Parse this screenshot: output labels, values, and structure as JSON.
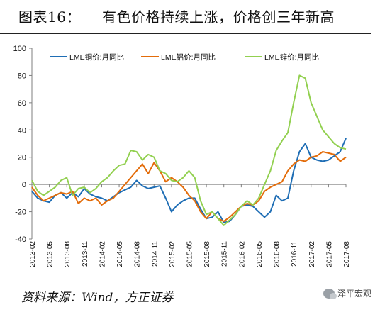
{
  "title": {
    "label": "图表16：",
    "text": "有色价格持续上涨，价格创三年新高"
  },
  "source": "资料来源：Wind，方正证券",
  "watermark": "泽平宏观",
  "chart_data": {
    "type": "line",
    "title": "",
    "xlabel": "",
    "ylabel": "",
    "ylim": [
      -40,
      100
    ],
    "yticks": [
      -40,
      -20,
      0,
      20,
      40,
      60,
      80,
      100
    ],
    "grid": false,
    "legend_position": "top",
    "x_tick_labels": [
      "2013-02",
      "2013-05",
      "2013-08",
      "2013-11",
      "2014-02",
      "2014-05",
      "2014-08",
      "2014-11",
      "2015-02",
      "2015-05",
      "2015-08",
      "2015-11",
      "2016-02",
      "2016-05",
      "2016-08",
      "2016-11",
      "2017-02",
      "2017-05",
      "2017-08"
    ],
    "x_start": "2013-02",
    "x_end": "2017-08",
    "series": [
      {
        "name": "LME铜价:月同比",
        "color": "#1f6eb5",
        "points": [
          [
            "2013-02",
            -5
          ],
          [
            "2013-03",
            -10
          ],
          [
            "2013-04",
            -12
          ],
          [
            "2013-05",
            -13
          ],
          [
            "2013-06",
            -8
          ],
          [
            "2013-07",
            -6
          ],
          [
            "2013-08",
            -10
          ],
          [
            "2013-09",
            -6
          ],
          [
            "2013-10",
            -9
          ],
          [
            "2013-11",
            -3
          ],
          [
            "2013-12",
            -7
          ],
          [
            "2014-01",
            -9
          ],
          [
            "2014-02",
            -10
          ],
          [
            "2014-03",
            -12
          ],
          [
            "2014-04",
            -9
          ],
          [
            "2014-05",
            -6
          ],
          [
            "2014-06",
            -4
          ],
          [
            "2014-07",
            -2
          ],
          [
            "2014-08",
            3
          ],
          [
            "2014-09",
            -1
          ],
          [
            "2014-10",
            -3
          ],
          [
            "2014-11",
            -2
          ],
          [
            "2014-12",
            -1
          ],
          [
            "2015-01",
            -10
          ],
          [
            "2015-02",
            -20
          ],
          [
            "2015-03",
            -15
          ],
          [
            "2015-04",
            -12
          ],
          [
            "2015-05",
            -10
          ],
          [
            "2015-06",
            -10
          ],
          [
            "2015-07",
            -18
          ],
          [
            "2015-08",
            -25
          ],
          [
            "2015-09",
            -24
          ],
          [
            "2015-10",
            -20
          ],
          [
            "2015-11",
            -28
          ],
          [
            "2015-12",
            -27
          ],
          [
            "2016-01",
            -22
          ],
          [
            "2016-02",
            -16
          ],
          [
            "2016-03",
            -15
          ],
          [
            "2016-04",
            -16
          ],
          [
            "2016-05",
            -20
          ],
          [
            "2016-06",
            -24
          ],
          [
            "2016-07",
            -20
          ],
          [
            "2016-08",
            -8
          ],
          [
            "2016-09",
            -12
          ],
          [
            "2016-10",
            -10
          ],
          [
            "2016-11",
            10
          ],
          [
            "2016-12",
            24
          ],
          [
            "2017-01",
            30
          ],
          [
            "2017-02",
            20
          ],
          [
            "2017-03",
            18
          ],
          [
            "2017-04",
            17
          ],
          [
            "2017-05",
            18
          ],
          [
            "2017-06",
            21
          ],
          [
            "2017-07",
            24
          ],
          [
            "2017-08",
            34
          ]
        ]
      },
      {
        "name": "LME铝价:月同比",
        "color": "#e36c0a",
        "points": [
          [
            "2013-02",
            -2
          ],
          [
            "2013-03",
            -8
          ],
          [
            "2013-04",
            -12
          ],
          [
            "2013-05",
            -10
          ],
          [
            "2013-06",
            -8
          ],
          [
            "2013-07",
            -6
          ],
          [
            "2013-08",
            -7
          ],
          [
            "2013-09",
            -5
          ],
          [
            "2013-10",
            -14
          ],
          [
            "2013-11",
            -10
          ],
          [
            "2013-12",
            -12
          ],
          [
            "2014-01",
            -10
          ],
          [
            "2014-02",
            -15
          ],
          [
            "2014-03",
            -12
          ],
          [
            "2014-04",
            -10
          ],
          [
            "2014-05",
            -5
          ],
          [
            "2014-06",
            0
          ],
          [
            "2014-07",
            5
          ],
          [
            "2014-08",
            10
          ],
          [
            "2014-09",
            15
          ],
          [
            "2014-10",
            8
          ],
          [
            "2014-11",
            16
          ],
          [
            "2014-12",
            10
          ],
          [
            "2015-01",
            2
          ],
          [
            "2015-02",
            5
          ],
          [
            "2015-03",
            2
          ],
          [
            "2015-04",
            -2
          ],
          [
            "2015-05",
            -8
          ],
          [
            "2015-06",
            -12
          ],
          [
            "2015-07",
            -20
          ],
          [
            "2015-08",
            -25
          ],
          [
            "2015-09",
            -20
          ],
          [
            "2015-10",
            -25
          ],
          [
            "2015-11",
            -27
          ],
          [
            "2015-12",
            -24
          ],
          [
            "2016-01",
            -20
          ],
          [
            "2016-02",
            -16
          ],
          [
            "2016-03",
            -14
          ],
          [
            "2016-04",
            -15
          ],
          [
            "2016-05",
            -12
          ],
          [
            "2016-06",
            -5
          ],
          [
            "2016-07",
            -2
          ],
          [
            "2016-08",
            0
          ],
          [
            "2016-09",
            2
          ],
          [
            "2016-10",
            10
          ],
          [
            "2016-11",
            15
          ],
          [
            "2016-12",
            18
          ],
          [
            "2017-01",
            17
          ],
          [
            "2017-02",
            20
          ],
          [
            "2017-03",
            21
          ],
          [
            "2017-04",
            24
          ],
          [
            "2017-05",
            23
          ],
          [
            "2017-06",
            22
          ],
          [
            "2017-07",
            17
          ],
          [
            "2017-08",
            20
          ]
        ]
      },
      {
        "name": "LME锌价:月同比",
        "color": "#92d050",
        "points": [
          [
            "2013-02",
            3
          ],
          [
            "2013-03",
            -5
          ],
          [
            "2013-04",
            -8
          ],
          [
            "2013-05",
            -5
          ],
          [
            "2013-06",
            -2
          ],
          [
            "2013-07",
            3
          ],
          [
            "2013-08",
            5
          ],
          [
            "2013-09",
            -8
          ],
          [
            "2013-10",
            -3
          ],
          [
            "2013-11",
            -2
          ],
          [
            "2013-12",
            -6
          ],
          [
            "2014-01",
            -3
          ],
          [
            "2014-02",
            2
          ],
          [
            "2014-03",
            5
          ],
          [
            "2014-04",
            10
          ],
          [
            "2014-05",
            14
          ],
          [
            "2014-06",
            15
          ],
          [
            "2014-07",
            25
          ],
          [
            "2014-08",
            24
          ],
          [
            "2014-09",
            18
          ],
          [
            "2014-10",
            22
          ],
          [
            "2014-11",
            20
          ],
          [
            "2014-12",
            10
          ],
          [
            "2015-01",
            8
          ],
          [
            "2015-02",
            3
          ],
          [
            "2015-03",
            2
          ],
          [
            "2015-04",
            5
          ],
          [
            "2015-05",
            10
          ],
          [
            "2015-06",
            5
          ],
          [
            "2015-07",
            -12
          ],
          [
            "2015-08",
            -22
          ],
          [
            "2015-09",
            -20
          ],
          [
            "2015-10",
            -25
          ],
          [
            "2015-11",
            -30
          ],
          [
            "2015-12",
            -26
          ],
          [
            "2016-01",
            -22
          ],
          [
            "2016-02",
            -16
          ],
          [
            "2016-03",
            -12
          ],
          [
            "2016-04",
            -15
          ],
          [
            "2016-05",
            -10
          ],
          [
            "2016-06",
            0
          ],
          [
            "2016-07",
            10
          ],
          [
            "2016-08",
            25
          ],
          [
            "2016-09",
            32
          ],
          [
            "2016-10",
            38
          ],
          [
            "2016-11",
            60
          ],
          [
            "2016-12",
            80
          ],
          [
            "2017-01",
            78
          ],
          [
            "2017-02",
            60
          ],
          [
            "2017-03",
            50
          ],
          [
            "2017-04",
            40
          ],
          [
            "2017-05",
            35
          ],
          [
            "2017-06",
            30
          ],
          [
            "2017-07",
            27
          ],
          [
            "2017-08",
            26
          ]
        ]
      }
    ]
  }
}
